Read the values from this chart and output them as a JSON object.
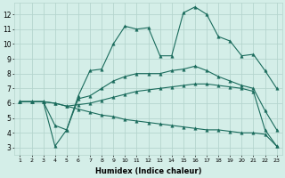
{
  "x": [
    1,
    2,
    3,
    4,
    5,
    6,
    7,
    8,
    9,
    10,
    11,
    12,
    13,
    14,
    15,
    16,
    17,
    18,
    19,
    20,
    21,
    22,
    23
  ],
  "line1": [
    6.1,
    6.1,
    6.1,
    4.5,
    4.2,
    6.5,
    8.2,
    8.3,
    10.0,
    11.2,
    11.0,
    11.1,
    9.2,
    9.2,
    12.1,
    12.5,
    12.0,
    10.5,
    10.2,
    9.2,
    9.3,
    8.2,
    7.0
  ],
  "line2": [
    6.1,
    6.1,
    6.1,
    3.1,
    4.2,
    6.3,
    6.5,
    7.0,
    7.5,
    7.8,
    8.0,
    8.0,
    8.0,
    8.2,
    8.3,
    8.5,
    8.2,
    7.8,
    7.5,
    7.2,
    7.0,
    5.5,
    4.2
  ],
  "line3": [
    6.1,
    6.1,
    6.1,
    6.0,
    5.8,
    5.6,
    5.4,
    5.2,
    5.1,
    4.9,
    4.8,
    4.7,
    4.6,
    4.5,
    4.4,
    4.3,
    4.2,
    4.2,
    4.1,
    4.0,
    4.0,
    3.9,
    3.1
  ],
  "line4": [
    6.1,
    6.1,
    6.1,
    6.0,
    5.8,
    5.9,
    6.0,
    6.2,
    6.4,
    6.6,
    6.8,
    6.9,
    7.0,
    7.1,
    7.2,
    7.3,
    7.3,
    7.2,
    7.1,
    7.0,
    6.8,
    4.2,
    3.1
  ],
  "line_color": "#1a6b5c",
  "bg_color": "#d4eee8",
  "grid_color": "#b5d5ce",
  "xlabel": "Humidex (Indice chaleur)",
  "ylim": [
    2.5,
    12.8
  ],
  "xlim": [
    0.5,
    23.5
  ],
  "yticks": [
    3,
    4,
    5,
    6,
    7,
    8,
    9,
    10,
    11,
    12
  ],
  "xticks": [
    1,
    2,
    3,
    4,
    5,
    6,
    7,
    8,
    9,
    10,
    11,
    12,
    13,
    14,
    15,
    16,
    17,
    18,
    19,
    20,
    21,
    22,
    23
  ],
  "marker": "^",
  "markersize": 2.5,
  "linewidth": 0.8,
  "tick_fontsize_x": 4.5,
  "tick_fontsize_y": 5.5,
  "xlabel_fontsize": 6.0
}
